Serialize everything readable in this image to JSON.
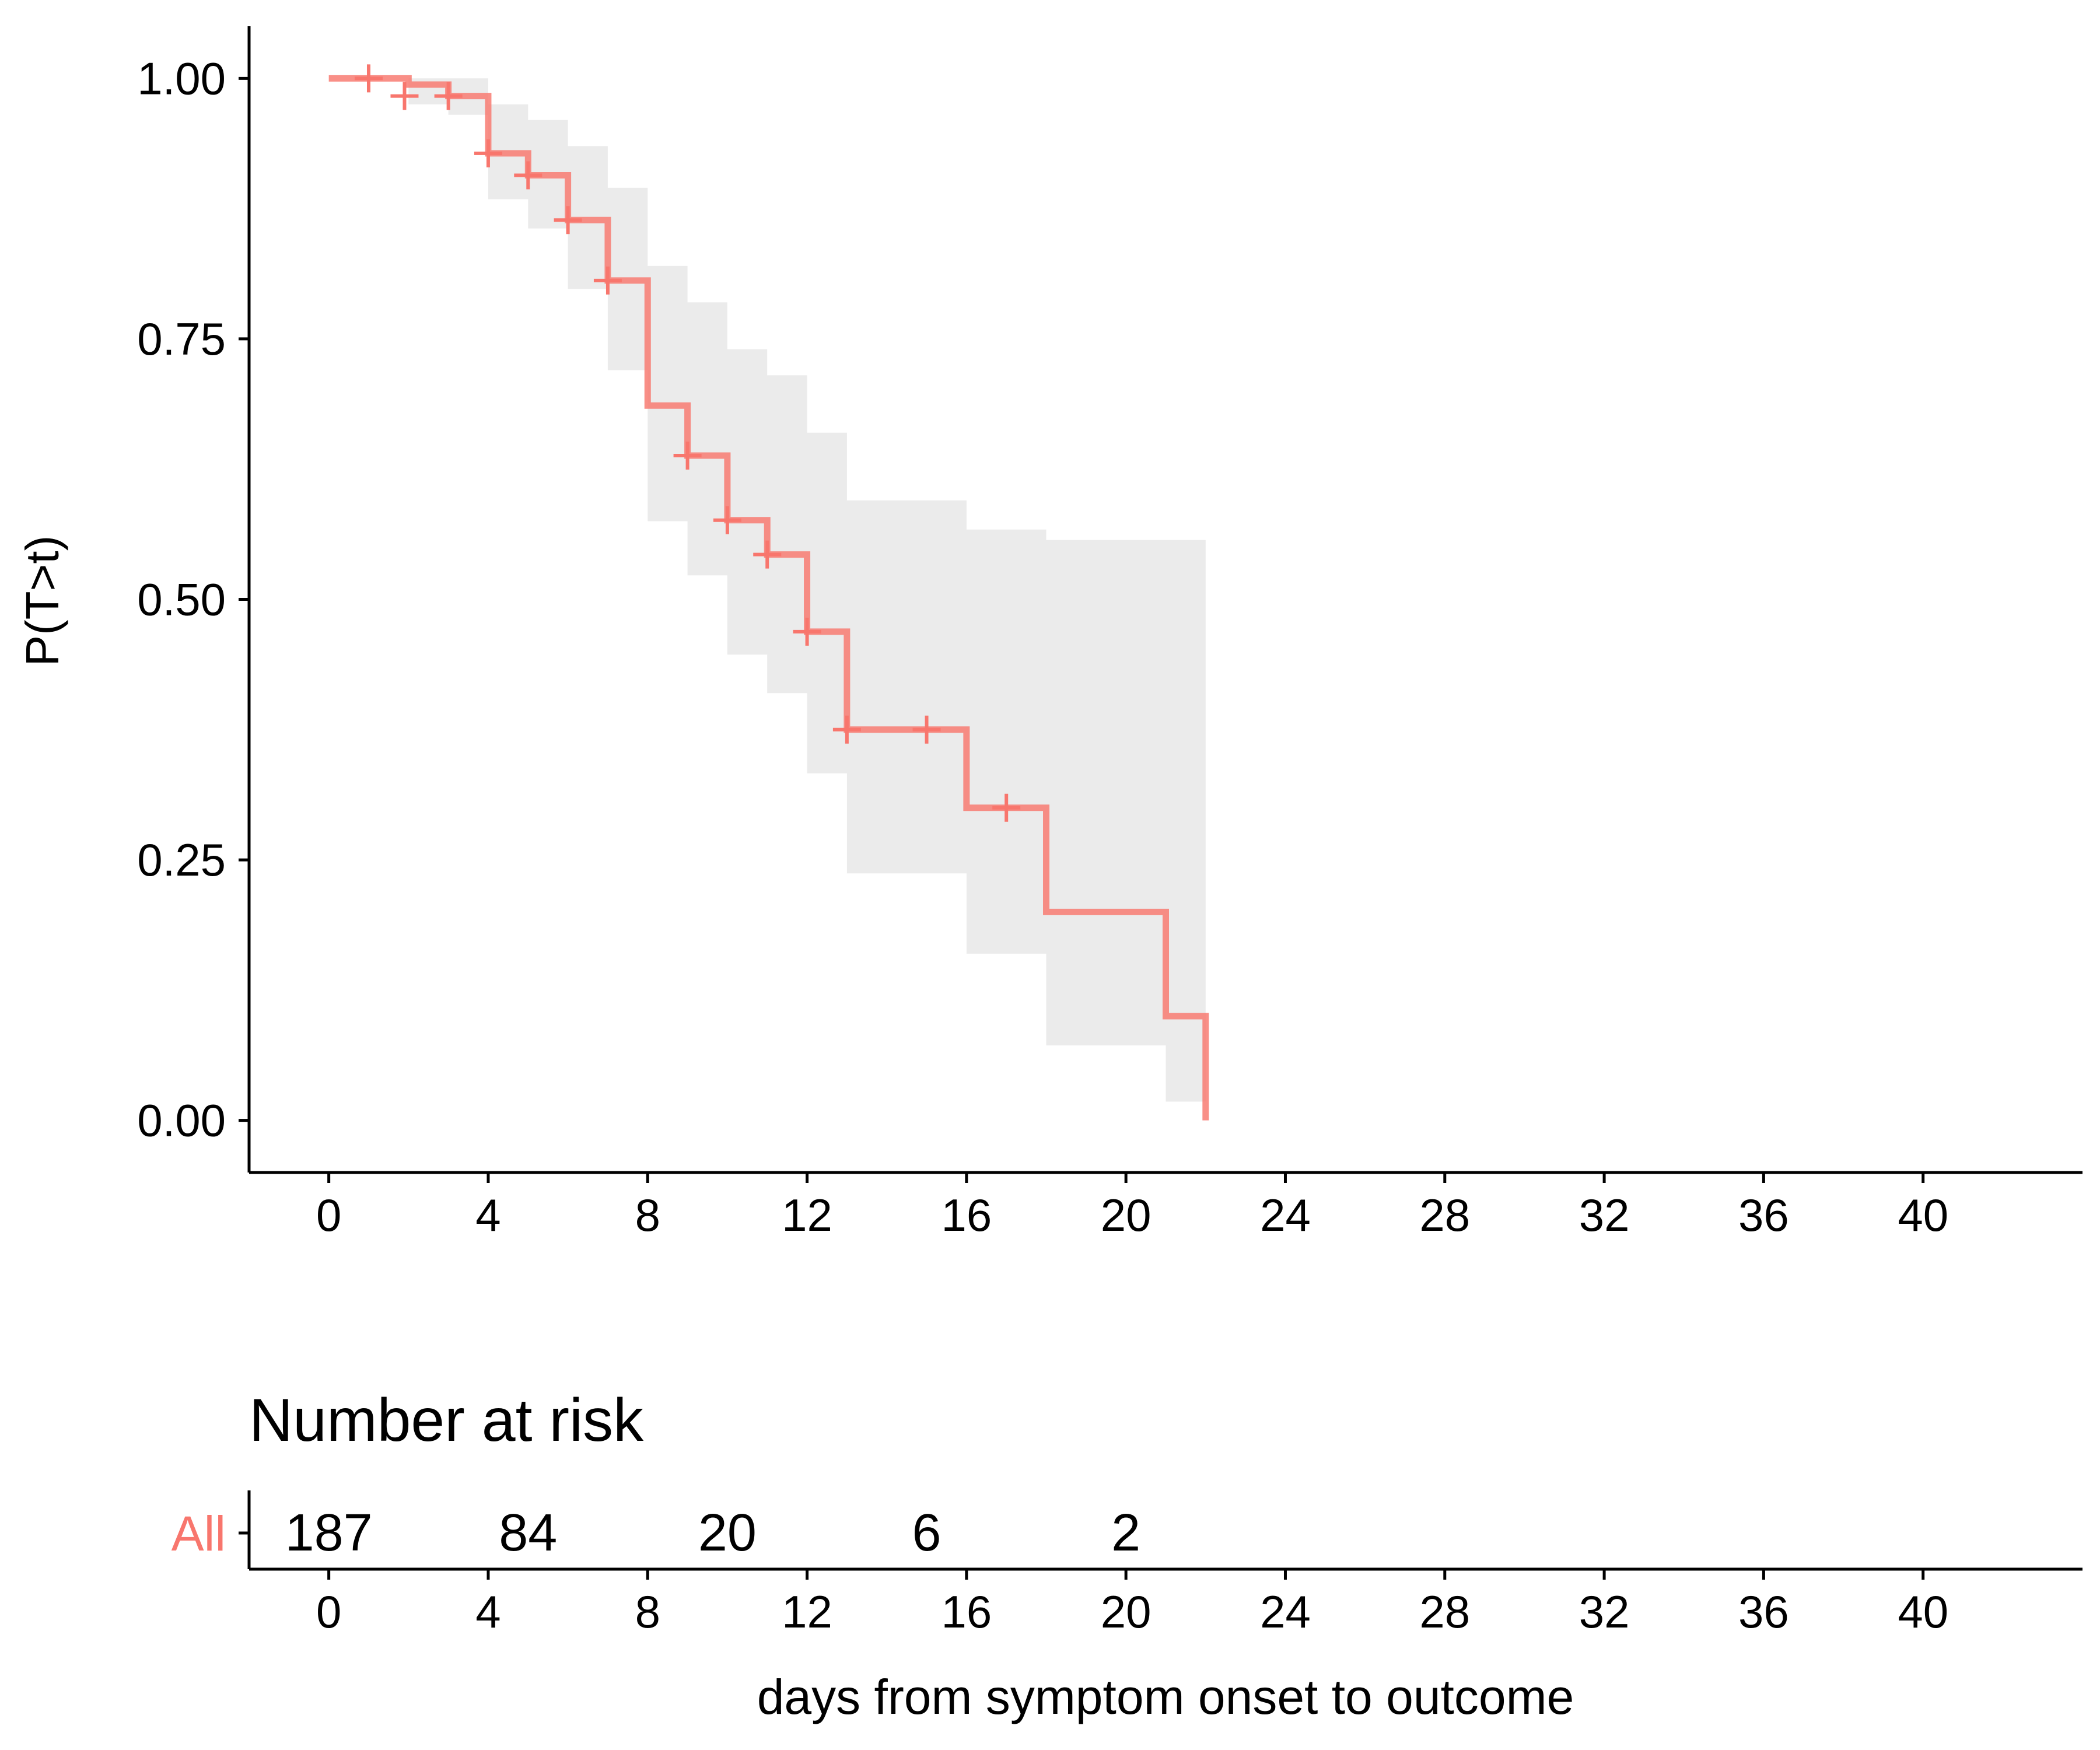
{
  "chart_data": [
    {
      "type": "line",
      "subtype": "kaplan-meier-step",
      "title": "",
      "xlabel": "",
      "ylabel": "P(T>t)",
      "xlim": [
        -2,
        44
      ],
      "ylim": [
        -0.05,
        1.05
      ],
      "x_ticks": [
        0,
        4,
        8,
        12,
        16,
        20,
        24,
        28,
        32,
        36,
        40
      ],
      "y_ticks": [
        0.0,
        0.25,
        0.5,
        0.75,
        1.0
      ],
      "y_tick_labels": [
        "0.00",
        "0.25",
        "0.50",
        "0.75",
        "1.00"
      ],
      "grid": false,
      "legend": "none",
      "series": [
        {
          "color": "#F8766D",
          "steps": [
            {
              "x": 0,
              "y": 1.0
            },
            {
              "x": 2,
              "y": 0.994
            },
            {
              "x": 3,
              "y": 0.983
            },
            {
              "x": 4,
              "y": 0.928
            },
            {
              "x": 5,
              "y": 0.907
            },
            {
              "x": 6,
              "y": 0.864
            },
            {
              "x": 7,
              "y": 0.806
            },
            {
              "x": 8,
              "y": 0.686
            },
            {
              "x": 9,
              "y": 0.638
            },
            {
              "x": 10,
              "y": 0.576
            },
            {
              "x": 11,
              "y": 0.543
            },
            {
              "x": 12,
              "y": 0.469
            },
            {
              "x": 13,
              "y": 0.375
            },
            {
              "x": 16,
              "y": 0.3
            },
            {
              "x": 18,
              "y": 0.2
            },
            {
              "x": 21,
              "y": 0.1
            },
            {
              "x": 22,
              "y": 0.0
            }
          ],
          "ci_band": [
            {
              "x": 0,
              "lower": 1.0,
              "upper": 1.0
            },
            {
              "x": 2,
              "lower": 0.975,
              "upper": 1.0
            },
            {
              "x": 3,
              "lower": 0.965,
              "upper": 1.0
            },
            {
              "x": 4,
              "lower": 0.884,
              "upper": 0.975
            },
            {
              "x": 5,
              "lower": 0.856,
              "upper": 0.96
            },
            {
              "x": 6,
              "lower": 0.798,
              "upper": 0.935
            },
            {
              "x": 7,
              "lower": 0.72,
              "upper": 0.895
            },
            {
              "x": 8,
              "lower": 0.575,
              "upper": 0.82
            },
            {
              "x": 9,
              "lower": 0.523,
              "upper": 0.785
            },
            {
              "x": 10,
              "lower": 0.447,
              "upper": 0.74
            },
            {
              "x": 11,
              "lower": 0.41,
              "upper": 0.715
            },
            {
              "x": 12,
              "lower": 0.333,
              "upper": 0.66
            },
            {
              "x": 13,
              "lower": 0.237,
              "upper": 0.595
            },
            {
              "x": 16,
              "lower": 0.16,
              "upper": 0.567
            },
            {
              "x": 18,
              "lower": 0.072,
              "upper": 0.557
            },
            {
              "x": 21,
              "lower": 0.018,
              "upper": 0.557
            },
            {
              "x": 22,
              "lower": 0.018,
              "upper": 0.56
            }
          ],
          "censor_marks": [
            {
              "x": 1.0,
              "y": 1.0
            },
            {
              "x": 1.9,
              "y": 0.983
            },
            {
              "x": 3.0,
              "y": 0.983
            },
            {
              "x": 4.0,
              "y": 0.928
            },
            {
              "x": 5.0,
              "y": 0.907
            },
            {
              "x": 6.0,
              "y": 0.864
            },
            {
              "x": 7.0,
              "y": 0.806
            },
            {
              "x": 9.0,
              "y": 0.638
            },
            {
              "x": 10.0,
              "y": 0.576
            },
            {
              "x": 11.0,
              "y": 0.543
            },
            {
              "x": 12.0,
              "y": 0.469
            },
            {
              "x": 13.0,
              "y": 0.375
            },
            {
              "x": 15.0,
              "y": 0.375
            },
            {
              "x": 17.0,
              "y": 0.3
            }
          ]
        }
      ]
    },
    {
      "type": "table",
      "title": "Number at risk",
      "xlabel": "days from symptom onset to outcome",
      "xlim": [
        -2,
        44
      ],
      "x_ticks": [
        0,
        4,
        8,
        12,
        16,
        20,
        24,
        28,
        32,
        36,
        40
      ],
      "rows": [
        {
          "label": "All",
          "color": "#F8766D",
          "entries": [
            {
              "x": 0,
              "value": "187"
            },
            {
              "x": 5,
              "value": "84"
            },
            {
              "x": 10,
              "value": "20"
            },
            {
              "x": 15,
              "value": "6"
            },
            {
              "x": 20,
              "value": "2"
            }
          ]
        }
      ]
    }
  ]
}
